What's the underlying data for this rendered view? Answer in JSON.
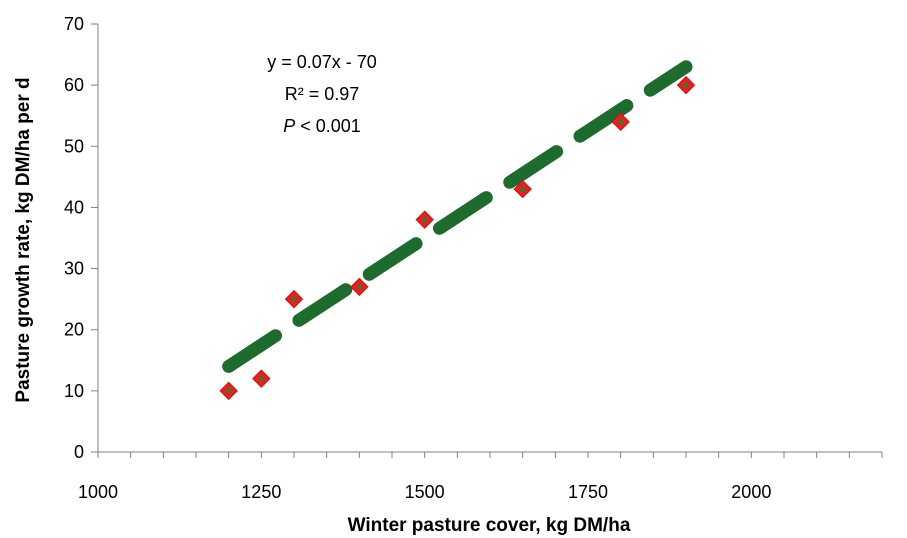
{
  "chart_data": {
    "type": "scatter",
    "xlabel": "Winter pasture cover, kg DM/ha",
    "ylabel": "Pasture growth rate, kg DM/ha per d",
    "xlim": [
      1000,
      2200
    ],
    "ylim": [
      0,
      70
    ],
    "x_ticks": [
      "1000",
      "1250",
      "1500",
      "1750",
      "2000"
    ],
    "y_ticks": [
      "0",
      "10",
      "20",
      "30",
      "40",
      "50",
      "60",
      "70"
    ],
    "x_tick_values": [
      1000,
      1250,
      1500,
      1750,
      2000
    ],
    "y_tick_values": [
      0,
      10,
      20,
      30,
      40,
      50,
      60,
      70
    ],
    "x_minor_step": 50,
    "grid": false,
    "points": [
      {
        "x": 1200,
        "y": 10
      },
      {
        "x": 1250,
        "y": 12
      },
      {
        "x": 1300,
        "y": 25
      },
      {
        "x": 1400,
        "y": 27
      },
      {
        "x": 1500,
        "y": 38
      },
      {
        "x": 1650,
        "y": 43
      },
      {
        "x": 1800,
        "y": 54
      },
      {
        "x": 1900,
        "y": 60
      }
    ],
    "trendline": {
      "slope": 0.07,
      "intercept": -70,
      "x_range": [
        1200,
        1900
      ],
      "style": "dashed"
    },
    "annotation": {
      "equation": "y = 0.07x - 70",
      "r2": "R² = 0.97",
      "p_italic": "P",
      "p_rest": " < 0.001"
    },
    "colors": {
      "marker_fill": "#ee1c1c",
      "marker_center": "#2e7d32",
      "trendline": "#1e6b2e",
      "axis": "#808080"
    }
  }
}
